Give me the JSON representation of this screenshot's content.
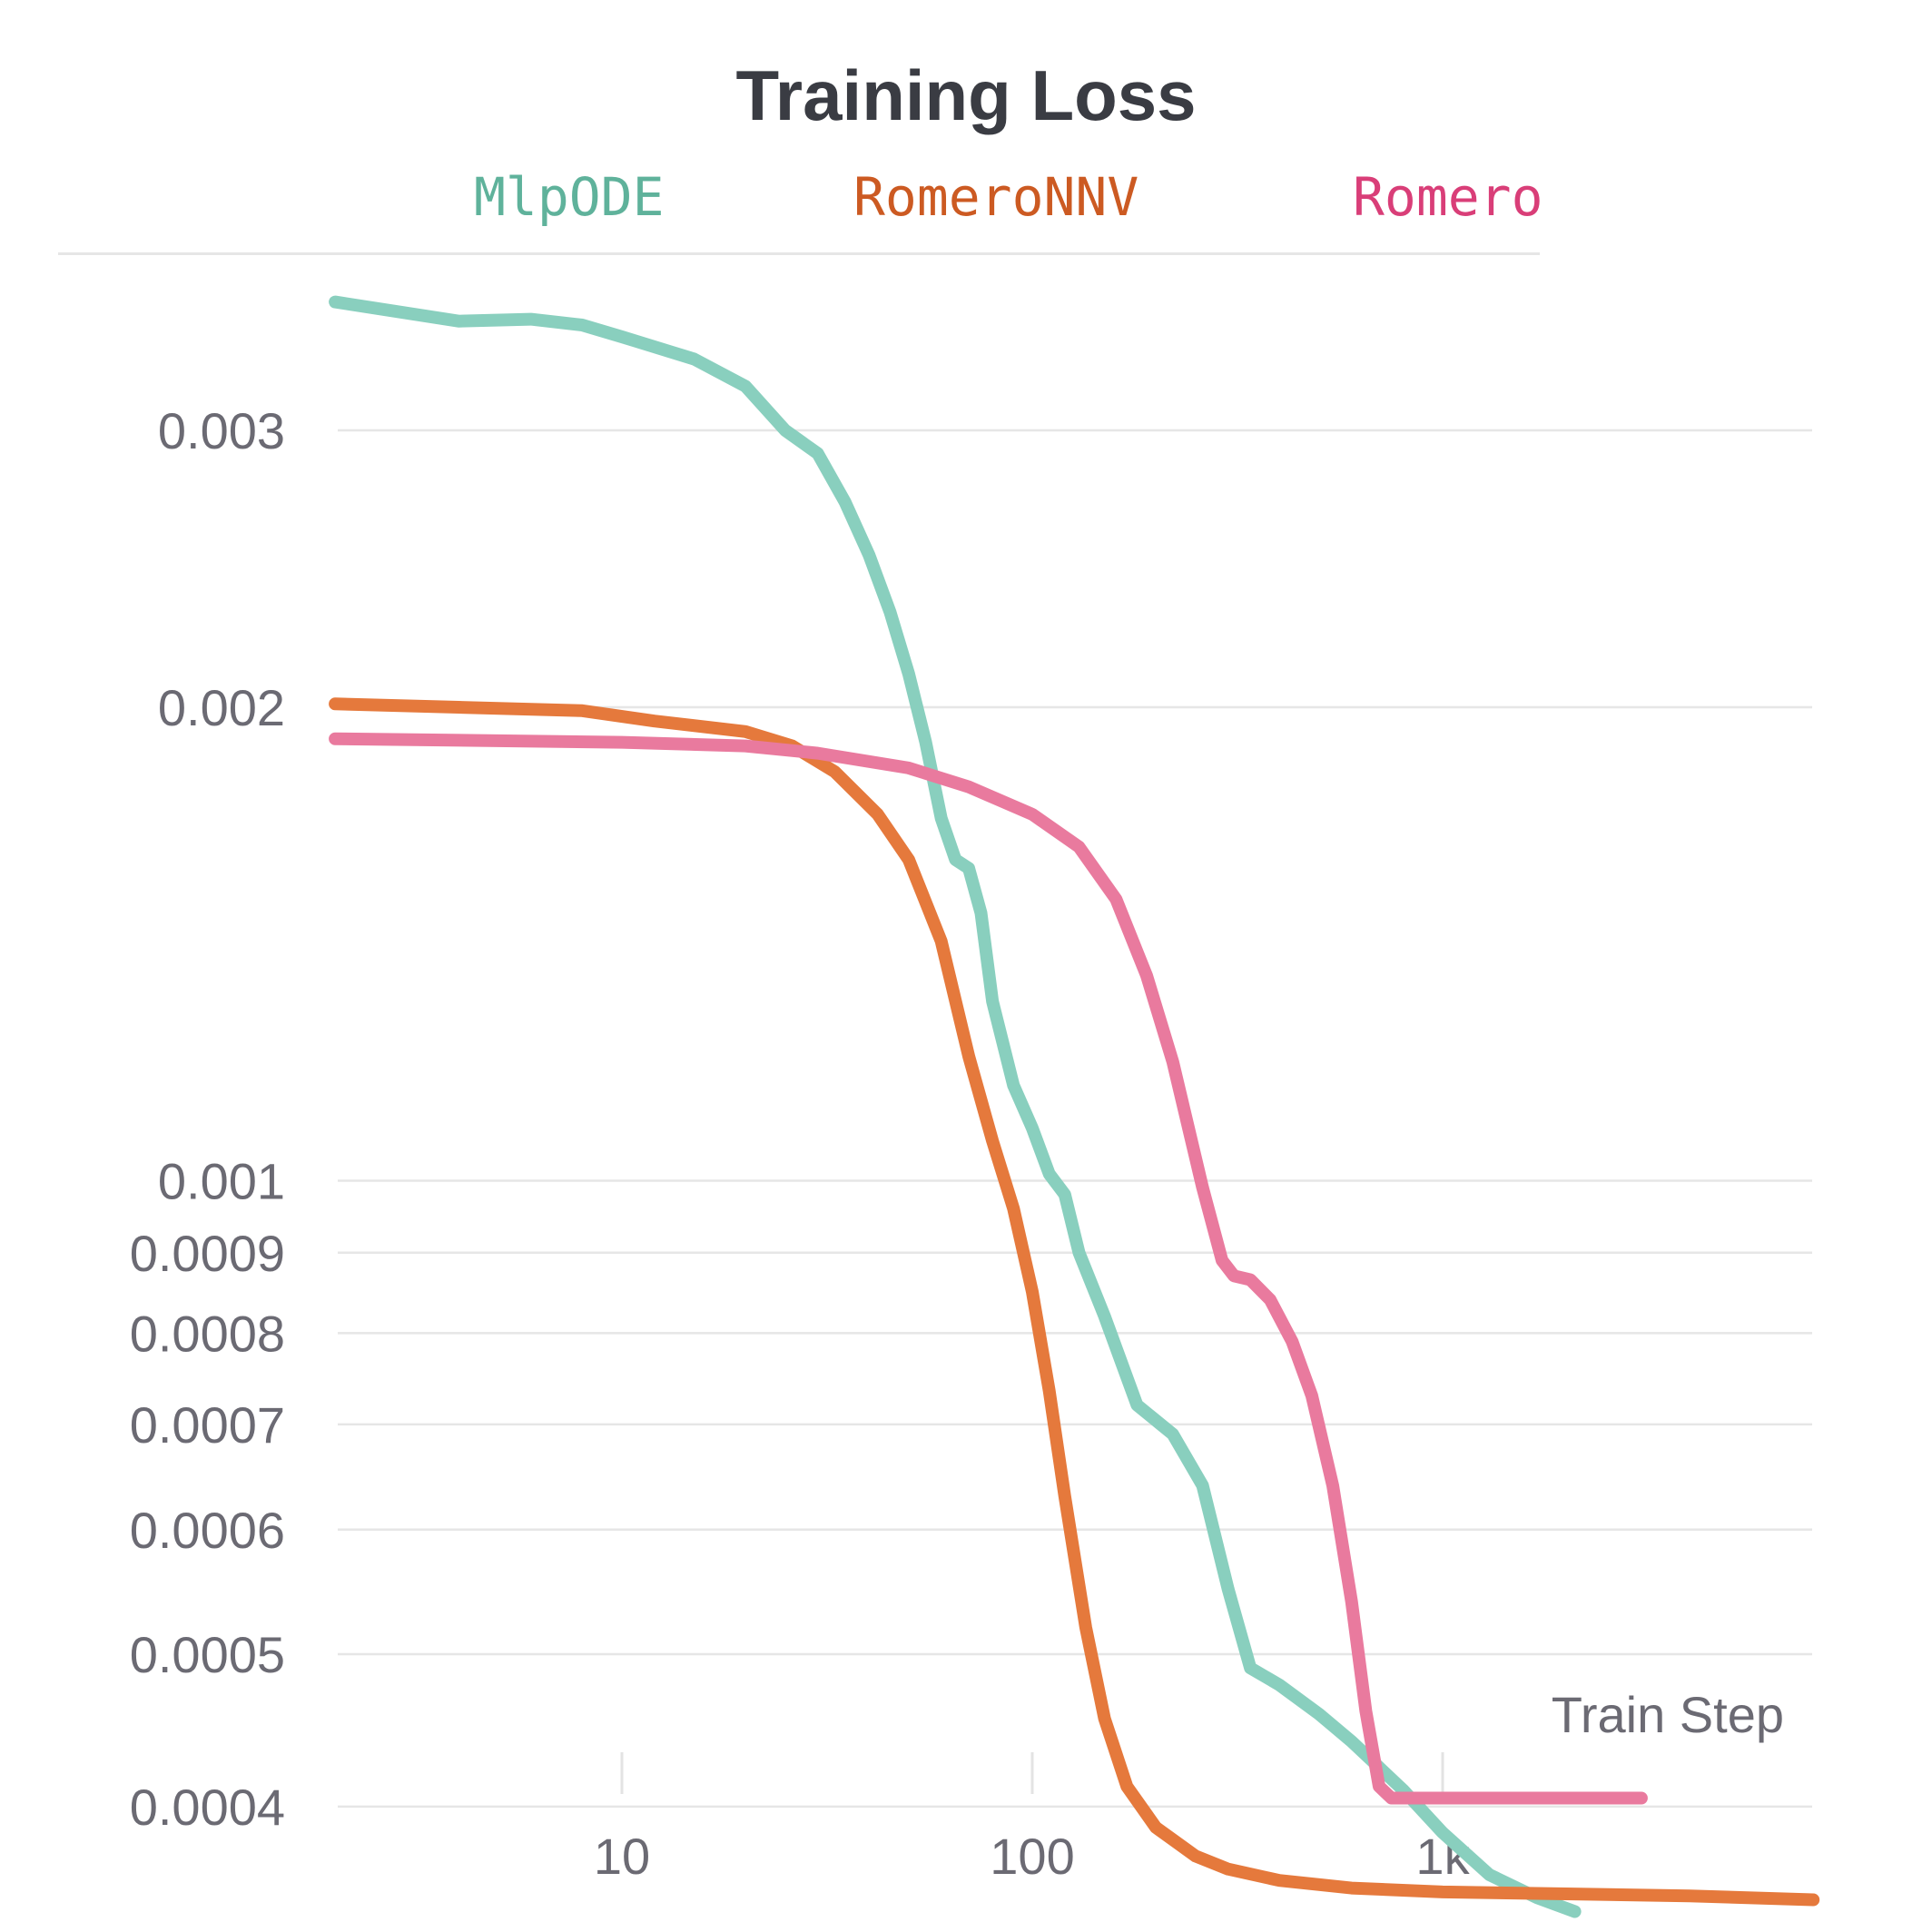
{
  "chart_data": {
    "type": "line",
    "title": "Training Loss",
    "xlabel": "Train Step",
    "ylabel": "",
    "xscale": "log",
    "yscale": "log",
    "xlim": [
      2,
      8000
    ],
    "ylim": [
      0.00035,
      0.0038
    ],
    "grid": "horizontal",
    "legend_position": "top",
    "x_ticks": [
      {
        "value": 10,
        "label": "10"
      },
      {
        "value": 100,
        "label": "100"
      },
      {
        "value": 1000,
        "label": "1k"
      }
    ],
    "y_ticks": [
      {
        "value": 0.003,
        "label": "0.003"
      },
      {
        "value": 0.002,
        "label": "0.002"
      },
      {
        "value": 0.001,
        "label": "0.001"
      },
      {
        "value": 0.0009,
        "label": "0.0009"
      },
      {
        "value": 0.0008,
        "label": "0.0008"
      },
      {
        "value": 0.0007,
        "label": "0.0007"
      },
      {
        "value": 0.0006,
        "label": "0.0006"
      },
      {
        "value": 0.0005,
        "label": "0.0005"
      },
      {
        "value": 0.0004,
        "label": "0.0004"
      }
    ],
    "series": [
      {
        "name": "MlpODE",
        "color": "#89cfbe",
        "legend_color": "#5fb29b",
        "points": [
          [
            2,
            0.00362
          ],
          [
            4,
            0.00352
          ],
          [
            6,
            0.00353
          ],
          [
            8,
            0.0035
          ],
          [
            10,
            0.00344
          ],
          [
            15,
            0.00333
          ],
          [
            20,
            0.0032
          ],
          [
            25,
            0.003
          ],
          [
            30,
            0.0029
          ],
          [
            35,
            0.0027
          ],
          [
            40,
            0.0025
          ],
          [
            45,
            0.0023
          ],
          [
            50,
            0.0021
          ],
          [
            55,
            0.0019
          ],
          [
            60,
            0.0017
          ],
          [
            65,
            0.0016
          ],
          [
            70,
            0.00158
          ],
          [
            75,
            0.00148
          ],
          [
            80,
            0.0013
          ],
          [
            90,
            0.00115
          ],
          [
            100,
            0.00108
          ],
          [
            110,
            0.00101
          ],
          [
            120,
            0.00098
          ],
          [
            130,
            0.0009
          ],
          [
            150,
            0.00082
          ],
          [
            180,
            0.00072
          ],
          [
            220,
            0.00069
          ],
          [
            260,
            0.00064
          ],
          [
            300,
            0.00055
          ],
          [
            340,
            0.00049
          ],
          [
            400,
            0.000478
          ],
          [
            500,
            0.000458
          ],
          [
            600,
            0.00044
          ],
          [
            800,
            0.00041
          ],
          [
            1000,
            0.000385
          ],
          [
            1300,
            0.000362
          ],
          [
            1700,
            0.00035
          ],
          [
            2100,
            0.000343
          ]
        ]
      },
      {
        "name": "RomeroNNV",
        "color": "#e5793c",
        "legend_color": "#cc5a22",
        "points": [
          [
            2,
            0.00201
          ],
          [
            4,
            0.002
          ],
          [
            8,
            0.00199
          ],
          [
            12,
            0.00196
          ],
          [
            20,
            0.00193
          ],
          [
            26,
            0.00189
          ],
          [
            33,
            0.00182
          ],
          [
            42,
            0.00171
          ],
          [
            50,
            0.0016
          ],
          [
            60,
            0.00142
          ],
          [
            70,
            0.0012
          ],
          [
            80,
            0.00106
          ],
          [
            90,
            0.00096
          ],
          [
            100,
            0.00085
          ],
          [
            110,
            0.000735
          ],
          [
            120,
            0.00063
          ],
          [
            135,
            0.00052
          ],
          [
            150,
            0.000455
          ],
          [
            170,
            0.000412
          ],
          [
            200,
            0.000388
          ],
          [
            250,
            0.000372
          ],
          [
            300,
            0.000365
          ],
          [
            400,
            0.000359
          ],
          [
            600,
            0.000355
          ],
          [
            1000,
            0.000353
          ],
          [
            2000,
            0.000352
          ],
          [
            4000,
            0.000351
          ],
          [
            8000,
            0.000349
          ]
        ]
      },
      {
        "name": "Romero",
        "color": "#e97a9e",
        "legend_color": "#d93e78",
        "points": [
          [
            2,
            0.00191
          ],
          [
            10,
            0.0019
          ],
          [
            20,
            0.00189
          ],
          [
            30,
            0.00187
          ],
          [
            50,
            0.00183
          ],
          [
            70,
            0.00178
          ],
          [
            100,
            0.00171
          ],
          [
            130,
            0.00163
          ],
          [
            160,
            0.00151
          ],
          [
            190,
            0.00135
          ],
          [
            220,
            0.00119
          ],
          [
            260,
            0.00099
          ],
          [
            290,
            0.00089
          ],
          [
            310,
            0.00087
          ],
          [
            340,
            0.000865
          ],
          [
            380,
            0.00084
          ],
          [
            430,
            0.00079
          ],
          [
            480,
            0.00073
          ],
          [
            540,
            0.00064
          ],
          [
            600,
            0.00054
          ],
          [
            650,
            0.00046
          ],
          [
            700,
            0.000412
          ],
          [
            750,
            0.000405
          ],
          [
            1000,
            0.000405
          ],
          [
            2000,
            0.000405
          ],
          [
            3050,
            0.000405
          ]
        ]
      }
    ]
  }
}
